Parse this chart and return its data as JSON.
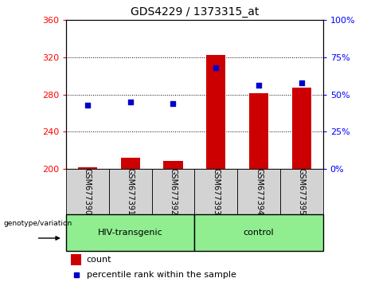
{
  "title": "GDS4229 / 1373315_at",
  "samples": [
    "GSM677390",
    "GSM677391",
    "GSM677392",
    "GSM677393",
    "GSM677394",
    "GSM677395"
  ],
  "count_values": [
    202,
    212,
    209,
    322,
    281,
    287
  ],
  "percentile_values": [
    43,
    45,
    44,
    68,
    56,
    58
  ],
  "ylim_left": [
    200,
    360
  ],
  "ylim_right": [
    0,
    100
  ],
  "yticks_left": [
    200,
    240,
    280,
    320,
    360
  ],
  "yticks_right": [
    0,
    25,
    50,
    75,
    100
  ],
  "bar_color": "#cc0000",
  "scatter_color": "#0000cc",
  "group1_label": "HIV-transgenic",
  "group2_label": "control",
  "group_bg_color": "#90ee90",
  "sample_bg_color": "#d3d3d3",
  "legend_count_label": "count",
  "legend_percentile_label": "percentile rank within the sample",
  "genotype_label": "genotype/variation",
  "bar_width": 0.45,
  "fig_width": 4.61,
  "fig_height": 3.54,
  "dpi": 100
}
